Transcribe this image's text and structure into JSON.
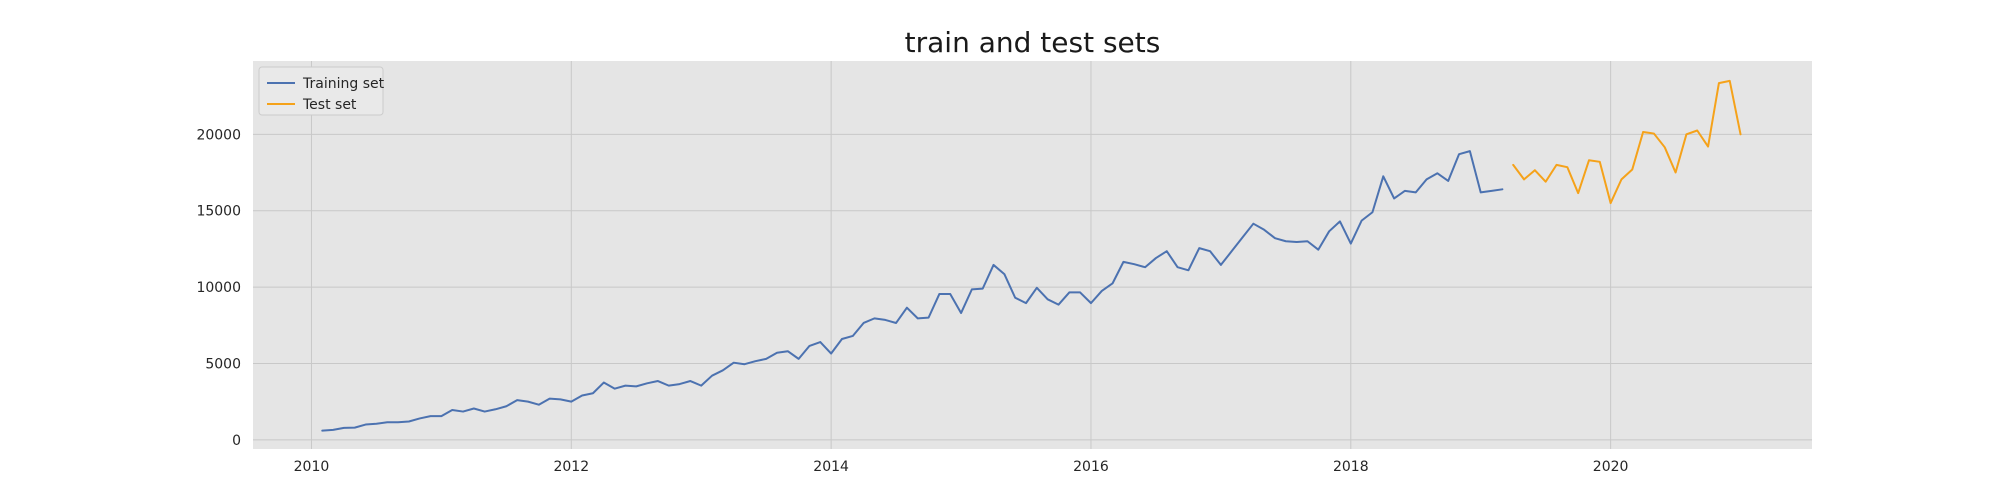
{
  "chart_data": {
    "type": "line",
    "title": "train and test sets",
    "xlabel": "",
    "ylabel": "",
    "xlim": [
      2009.55,
      2021.55
    ],
    "ylim": [
      -600,
      24800
    ],
    "grid": true,
    "legend_position": "top-left",
    "x_ticks": [
      {
        "value": 2010,
        "label": "2010"
      },
      {
        "value": 2012,
        "label": "2012"
      },
      {
        "value": 2014,
        "label": "2014"
      },
      {
        "value": 2016,
        "label": "2016"
      },
      {
        "value": 2018,
        "label": "2018"
      },
      {
        "value": 2020,
        "label": "2020"
      }
    ],
    "y_ticks": [
      {
        "value": 0,
        "label": "0"
      },
      {
        "value": 5000,
        "label": "5000"
      },
      {
        "value": 10000,
        "label": "10000"
      },
      {
        "value": 15000,
        "label": "15000"
      },
      {
        "value": 20000,
        "label": "20000"
      }
    ],
    "series": [
      {
        "name": "Training set",
        "color": "#4c72b0",
        "x_start": "2010-02",
        "values": [
          600,
          650,
          780,
          800,
          1000,
          1050,
          1150,
          1150,
          1200,
          1400,
          1550,
          1550,
          1950,
          1850,
          2050,
          1850,
          2000,
          2200,
          2600,
          2500,
          2300,
          2700,
          2650,
          2500,
          2900,
          3050,
          3750,
          3350,
          3550,
          3500,
          3700,
          3850,
          3550,
          3650,
          3850,
          3550,
          4200,
          4550,
          5050,
          4950,
          5150,
          5300,
          5700,
          5800,
          5300,
          6150,
          6400,
          5650,
          6600,
          6800,
          7650,
          7950,
          7850,
          7650,
          8650,
          7950,
          8000,
          9550,
          9550,
          8300,
          9850,
          9900,
          11450,
          10850,
          9300,
          8950,
          9950,
          9200,
          8850,
          9650,
          9650,
          8950,
          9750,
          10250,
          11650,
          11500,
          11300,
          11900,
          12350,
          11300,
          11100,
          12550,
          12350,
          11450,
          12350,
          13250,
          14150,
          13750,
          13200,
          13000,
          12950,
          13000,
          12450,
          13650,
          14300,
          12850,
          14350,
          14900,
          17250,
          15800,
          16300,
          16200,
          17050,
          17450,
          16950,
          18700,
          18900,
          16200,
          16300,
          16400
        ]
      },
      {
        "name": "Test set",
        "color": "#f5a21a",
        "x_start": "2019-04",
        "values": [
          18000,
          17050,
          17650,
          16900,
          18000,
          17850,
          16150,
          18300,
          18200,
          15500,
          17050,
          17700,
          20150,
          20050,
          19150,
          17500,
          20000,
          20250,
          19200,
          23350,
          23500,
          20000
        ]
      }
    ]
  }
}
